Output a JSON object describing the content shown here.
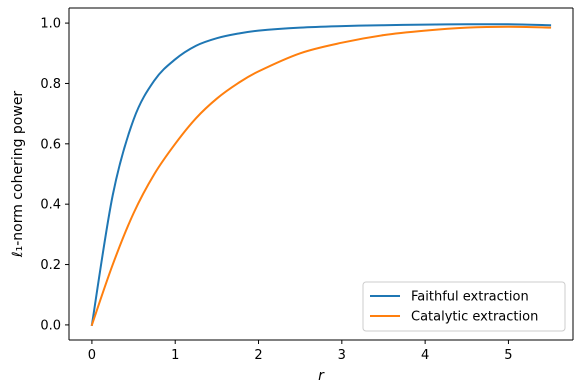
{
  "chart_data": {
    "type": "line",
    "xlabel": "r",
    "ylabel": "ℓ₁-norm cohering power",
    "xlim": [
      -0.275,
      5.775
    ],
    "ylim": [
      -0.05,
      1.05
    ],
    "x_ticks": [
      0,
      1,
      2,
      3,
      4,
      5
    ],
    "y_ticks": [
      0.0,
      0.2,
      0.4,
      0.6,
      0.8,
      1.0
    ],
    "x_tick_labels": [
      "0",
      "1",
      "2",
      "3",
      "4",
      "5"
    ],
    "y_tick_labels": [
      "0.0",
      "0.2",
      "0.4",
      "0.6",
      "0.8",
      "1.0"
    ],
    "grid": false,
    "legend_position": "lower-right",
    "x": [
      0,
      0.25,
      0.5,
      0.75,
      1.0,
      1.25,
      1.5,
      1.75,
      2.0,
      2.5,
      3.0,
      3.5,
      4.0,
      4.5,
      5.0,
      5.5
    ],
    "series": [
      {
        "name": "Faithful extraction",
        "color": "#1f77b4",
        "values": [
          0.0,
          0.43,
          0.68,
          0.81,
          0.88,
          0.925,
          0.95,
          0.965,
          0.975,
          0.985,
          0.99,
          0.993,
          0.995,
          0.996,
          0.996,
          0.993
        ]
      },
      {
        "name": "Catalytic extraction",
        "color": "#ff7f0e",
        "values": [
          0.0,
          0.2,
          0.37,
          0.5,
          0.6,
          0.685,
          0.75,
          0.8,
          0.84,
          0.9,
          0.935,
          0.96,
          0.975,
          0.985,
          0.988,
          0.985
        ]
      }
    ]
  }
}
